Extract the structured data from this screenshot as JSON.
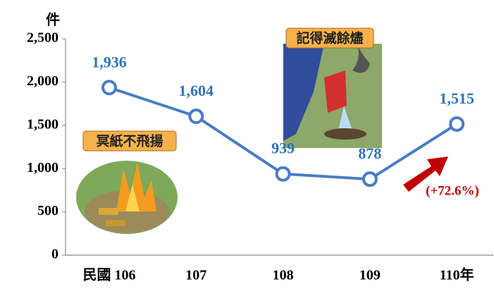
{
  "chart_data": {
    "type": "line",
    "y_label": "件",
    "categories": [
      "民國 106",
      "107",
      "108",
      "109",
      "110年"
    ],
    "series": [
      {
        "name": "件數",
        "color": "#4a7cc4",
        "values": [
          1936,
          1604,
          939,
          878,
          1515
        ],
        "value_labels": [
          "1,936",
          "1,604",
          "939",
          "878",
          "1,515"
        ]
      }
    ],
    "ylim": [
      0,
      2500
    ],
    "yticks": [
      0,
      500,
      {
        "value": 1000,
        "label": "1,000"
      },
      {
        "value": 1500,
        "label": "1,500"
      },
      {
        "value": 2000,
        "label": "2,000"
      },
      {
        "value": 2500,
        "label": "2,500"
      }
    ],
    "grid": false,
    "annotations": [
      "(+72.6%)",
      "冥紙不飛揚",
      "記得滅餘燼"
    ],
    "annotation_color": "#c00000"
  }
}
